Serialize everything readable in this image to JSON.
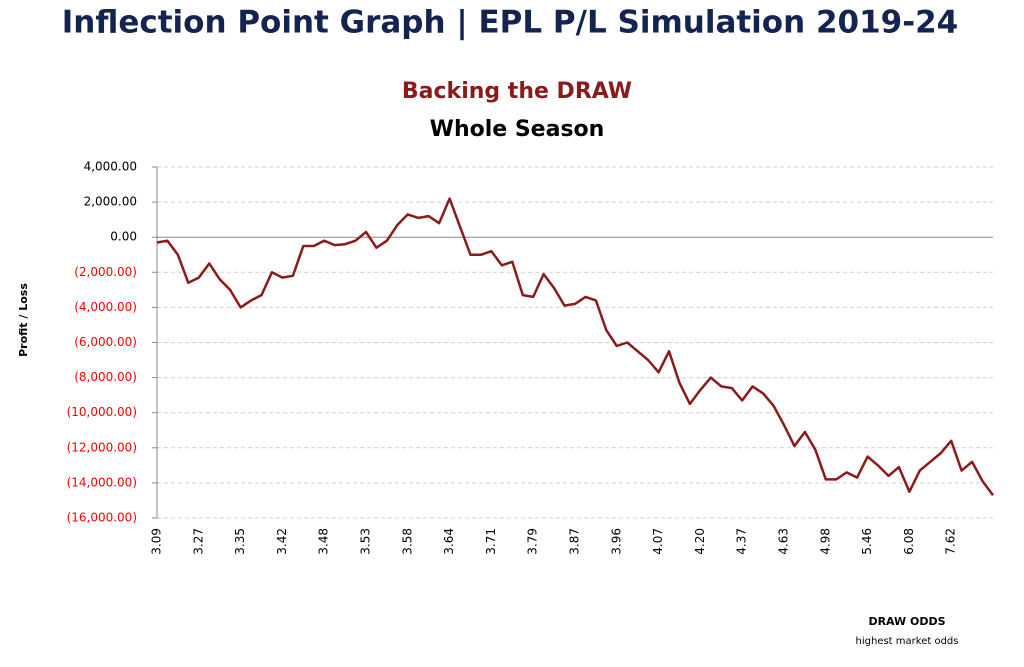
{
  "header": {
    "title": "Inflection Point Graph | EPL P/L Simulation 2019-24"
  },
  "chart_data": {
    "type": "line",
    "title": "Backing the DRAW",
    "subtitle": "Whole Season",
    "ylabel": "Profit / Loss",
    "xlabel": "DRAW ODDS",
    "xnote": "highest market odds",
    "categories": [
      "3.09",
      null,
      null,
      null,
      "3.27",
      null,
      null,
      null,
      "3.35",
      null,
      null,
      null,
      "3.42",
      null,
      null,
      null,
      "3.48",
      null,
      null,
      null,
      "3.53",
      null,
      null,
      null,
      "3.58",
      null,
      null,
      null,
      "3.64",
      null,
      null,
      null,
      "3.71",
      null,
      null,
      null,
      "3.79",
      null,
      null,
      null,
      "3.87",
      null,
      null,
      null,
      "3.96",
      null,
      null,
      null,
      "4.07",
      null,
      null,
      null,
      "4.20",
      null,
      null,
      null,
      "4.37",
      null,
      null,
      null,
      "4.63",
      null,
      null,
      null,
      "4.98",
      null,
      null,
      null,
      "5.46",
      null,
      null,
      null,
      "6.08",
      null,
      null,
      null,
      "7.62",
      null,
      null,
      null,
      null
    ],
    "series": [
      {
        "name": "Profit / Loss",
        "color": "#8b1a1a",
        "values": [
          -300,
          -200,
          -1000,
          -2600,
          -2300,
          -1500,
          -2400,
          -3000,
          -4000,
          -3600,
          -3300,
          -2000,
          -2300,
          -2200,
          -500,
          -500,
          -200,
          -450,
          -400,
          -200,
          300,
          -600,
          -200,
          700,
          1300,
          1100,
          1200,
          800,
          2200,
          600,
          -1000,
          -1000,
          -800,
          -1600,
          -1400,
          -3300,
          -3400,
          -2100,
          -2900,
          -3900,
          -3800,
          -3400,
          -3600,
          -5300,
          -6200,
          -6000,
          -6500,
          -7000,
          -7700,
          -6500,
          -8300,
          -9500,
          -8700,
          -8000,
          -8500,
          -8600,
          -9300,
          -8500,
          -8900,
          -9600,
          -10700,
          -11900,
          -11100,
          -12100,
          -13800,
          -13800,
          -13400,
          -13700,
          -12500,
          -13000,
          -13600,
          -13100,
          -14500,
          -13300,
          -12800,
          -12300,
          -11600,
          -13300,
          -12800,
          -13900,
          -14700
        ]
      }
    ],
    "ylim": [
      -16000,
      4000
    ],
    "yticks": [
      {
        "value": 4000,
        "label": "4,000.00"
      },
      {
        "value": 2000,
        "label": "2,000.00"
      },
      {
        "value": 0,
        "label": "0.00"
      },
      {
        "value": -2000,
        "label": "(2,000.00)"
      },
      {
        "value": -4000,
        "label": "(4,000.00)"
      },
      {
        "value": -6000,
        "label": "(6,000.00)"
      },
      {
        "value": -8000,
        "label": "(8,000.00)"
      },
      {
        "value": -10000,
        "label": "(10,000.00)"
      },
      {
        "value": -12000,
        "label": "(12,000.00)"
      },
      {
        "value": -14000,
        "label": "(14,000.00)"
      },
      {
        "value": -16000,
        "label": "(16,000.00)"
      }
    ],
    "negative_tick_color": "#ff0000",
    "grid": true
  }
}
